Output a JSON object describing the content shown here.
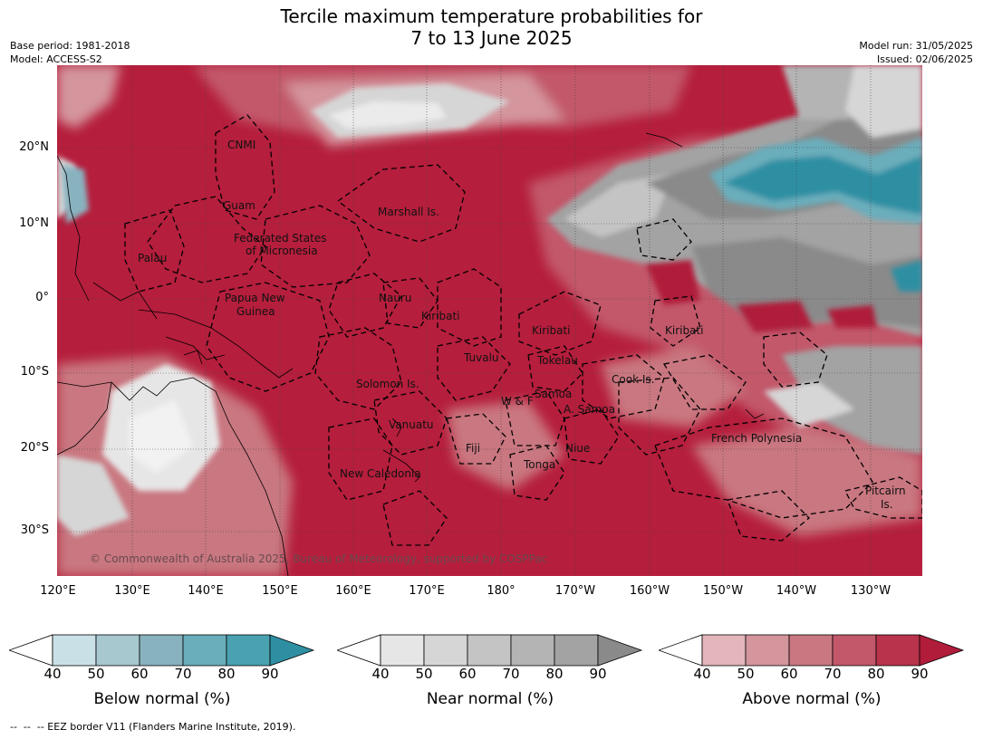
{
  "title_line1": "Tercile maximum temperature probabilities for",
  "title_line2": "7 to 13 June 2025",
  "base_period": "Base period: 1981-2018",
  "model": "Model: ACCESS-S2",
  "model_run": "Model run: 31/05/2025",
  "issued": "Issued: 02/06/2025",
  "lat_labels": [
    "20°N",
    "10°N",
    "0°",
    "10°S",
    "20°S",
    "30°S"
  ],
  "lon_labels": [
    "120°E",
    "130°E",
    "140°E",
    "150°E",
    "160°E",
    "170°E",
    "180°",
    "170°W",
    "160°W",
    "150°W",
    "140°W",
    "130°W"
  ],
  "copyright": "© Commonwealth of Australia 2025, Bureau of Meteorology, supported by COSPPac",
  "places": {
    "cnmi": "CNMI",
    "guam": "Guam",
    "marshall": "Marshall Is.",
    "fsm1": "Federated States",
    "fsm2": "of Micronesia",
    "palau": "Palau",
    "png1": "Papua New",
    "png2": "Guinea",
    "nauru": "Nauru",
    "kiribati_w": "Kiribati",
    "kiribati_c": "Kiribati",
    "kiribati_e": "Kiribati",
    "tuvalu": "Tuvalu",
    "tokelau": "Tokelau",
    "solomon": "Solomon Is.",
    "samoa": "Samoa",
    "wf": "W & F",
    "asamoa": "A. Samoa",
    "cook": "Cook Is.",
    "vanuatu": "Vanuatu",
    "fiji": "Fiji",
    "niue": "Niue",
    "tonga": "Tonga",
    "french_polynesia": "French Polynesia",
    "new_caledonia": "New Caledonia",
    "pitcairn1": "Pitcairn",
    "pitcairn2": "Is."
  },
  "colorbars": [
    {
      "label": "Below normal (%)",
      "ticks": [
        "40",
        "50",
        "60",
        "70",
        "80",
        "90"
      ],
      "colors": [
        "#c9e0e6",
        "#a6c8ce",
        "#89b2bf",
        "#6aadbb",
        "#4aa2b0",
        "#2e8fa3"
      ]
    },
    {
      "label": "Near normal (%)",
      "ticks": [
        "40",
        "50",
        "60",
        "70",
        "80",
        "90"
      ],
      "colors": [
        "#e6e6e6",
        "#d6d6d6",
        "#c4c4c4",
        "#b4b4b4",
        "#a3a3a3",
        "#8a8a8a"
      ]
    },
    {
      "label": "Above normal (%)",
      "ticks": [
        "40",
        "50",
        "60",
        "70",
        "80",
        "90"
      ],
      "colors": [
        "#e2b6bb",
        "#d4959d",
        "#c97780",
        "#c2586a",
        "#b8334b",
        "#b01c3a"
      ]
    }
  ],
  "footnote": "--  --  -- EEZ border V11 (Flanders Marine Institute, 2019).",
  "colors": {
    "above_dominant": "#b51e3c",
    "near_normal": "#8a8a8a",
    "below_normal": "#2e8fa3"
  }
}
